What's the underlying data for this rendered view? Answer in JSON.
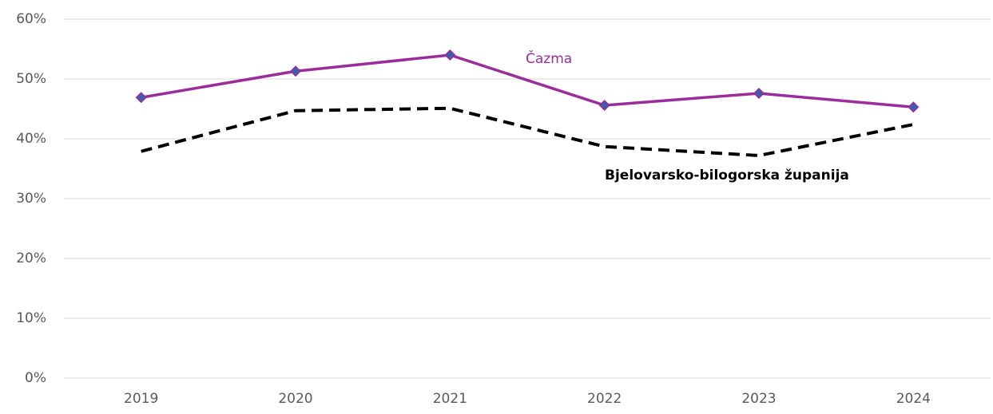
{
  "chart_data": {
    "type": "line",
    "categories": [
      "2019",
      "2020",
      "2021",
      "2022",
      "2023",
      "2024"
    ],
    "series": [
      {
        "name": "Čazma",
        "color": "#9b2d9b",
        "marker_color": "#3d5ea8",
        "line_style": "solid",
        "values": [
          46.9,
          51.3,
          54.0,
          45.6,
          47.6,
          45.3
        ]
      },
      {
        "name": "Bjelovarsko-bilogorska županija",
        "color": "#000000",
        "line_style": "dashed",
        "values": [
          37.9,
          44.7,
          45.1,
          38.7,
          37.2,
          42.4
        ]
      }
    ],
    "ylim": [
      0,
      60
    ],
    "yticks": [
      {
        "value": 0,
        "label": "0%"
      },
      {
        "value": 10,
        "label": "10%"
      },
      {
        "value": 20,
        "label": "20%"
      },
      {
        "value": 30,
        "label": "30%"
      },
      {
        "value": 40,
        "label": "40%"
      },
      {
        "value": 50,
        "label": "50%"
      },
      {
        "value": 60,
        "label": "60%"
      }
    ],
    "grid": true
  }
}
